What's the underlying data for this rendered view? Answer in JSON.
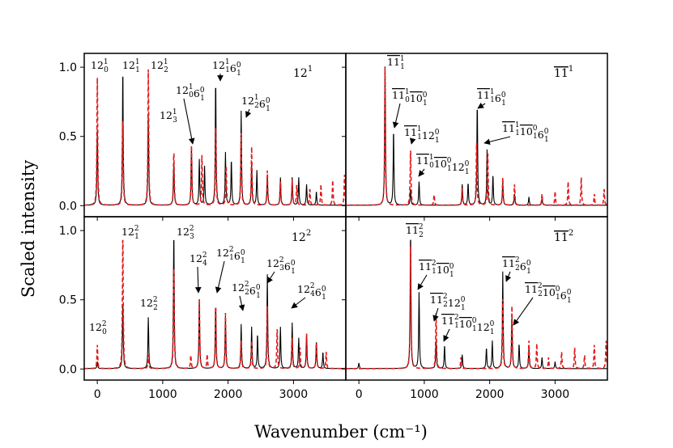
{
  "figure": {
    "ylabel": "Scaled intensity",
    "xlabel": "Wavenumber (cm⁻¹)"
  },
  "chart_data": [
    {
      "type": "line",
      "panel": "top-left",
      "tag": "12¹",
      "xlim": [
        -200,
        3800
      ],
      "ylim": [
        -0.08,
        1.1
      ],
      "yticks": [
        "0.0",
        "0.5",
        "1.0"
      ],
      "grid": false,
      "series": [
        {
          "color": "#000000",
          "style": "solid",
          "peaks": [
            [
              0,
              0.55
            ],
            [
              390,
              1.0
            ],
            [
              780,
              0.65
            ],
            [
              1170,
              0.32
            ],
            [
              1440,
              0.42
            ],
            [
              1560,
              0.33
            ],
            [
              1640,
              0.28
            ],
            [
              1810,
              0.91
            ],
            [
              1960,
              0.38
            ],
            [
              2050,
              0.33
            ],
            [
              2200,
              0.68
            ],
            [
              2360,
              0.3
            ],
            [
              2440,
              0.25
            ],
            [
              2600,
              0.22
            ],
            [
              2800,
              0.2
            ],
            [
              2980,
              0.2
            ],
            [
              3080,
              0.2
            ],
            [
              3200,
              0.15
            ],
            [
              3350,
              0.1
            ]
          ]
        },
        {
          "color": "#e31a1c",
          "style": "dashed",
          "peaks": [
            [
              0,
              0.92
            ],
            [
              390,
              0.65
            ],
            [
              780,
              0.98
            ],
            [
              1170,
              0.4
            ],
            [
              1440,
              0.43
            ],
            [
              1600,
              0.36
            ],
            [
              1810,
              0.6
            ],
            [
              1970,
              0.3
            ],
            [
              2200,
              0.52
            ],
            [
              2360,
              0.42
            ],
            [
              2600,
              0.25
            ],
            [
              2800,
              0.17
            ],
            [
              2980,
              0.18
            ],
            [
              3050,
              0.15
            ],
            [
              3250,
              0.12
            ],
            [
              3420,
              0.15
            ],
            [
              3600,
              0.18
            ],
            [
              3780,
              0.22
            ]
          ]
        }
      ],
      "annotations": [
        {
          "base": "12",
          "sup": "1",
          "sub": "0"
        },
        {
          "base": "12",
          "sup": "1",
          "sub": "1"
        },
        {
          "base": "12",
          "sup": "1",
          "sub": "2"
        },
        {
          "base": "12",
          "sup": "1",
          "sub": "3"
        },
        {
          "base": "12",
          "sup": "1",
          "sub": "0",
          "base2": "6",
          "sup2": "0",
          "sub2": "1"
        },
        {
          "base": "12",
          "sup": "1",
          "sub": "1",
          "base2": "6",
          "sup2": "0",
          "sub2": "1"
        },
        {
          "base": "12",
          "sup": "1",
          "sub": "2",
          "base2": "6",
          "sup2": "0",
          "sub2": "1"
        }
      ]
    },
    {
      "type": "line",
      "panel": "top-right",
      "tag": "11¹",
      "xlim": [
        -200,
        3800
      ],
      "ylim": [
        -0.08,
        1.1
      ],
      "grid": false,
      "series": [
        {
          "color": "#000000",
          "style": "solid",
          "peaks": [
            [
              400,
              1.0
            ],
            [
              530,
              0.55
            ],
            [
              790,
              0.12
            ],
            [
              920,
              0.17
            ],
            [
              1580,
              0.15
            ],
            [
              1670,
              0.16
            ],
            [
              1810,
              0.74
            ],
            [
              1960,
              0.4
            ],
            [
              2050,
              0.22
            ],
            [
              2200,
              0.17
            ],
            [
              2380,
              0.08
            ],
            [
              2600,
              0.06
            ],
            [
              2800,
              0.05
            ]
          ]
        },
        {
          "color": "#e31a1c",
          "style": "dashed",
          "peaks": [
            [
              400,
              1.0
            ],
            [
              790,
              0.42
            ],
            [
              1150,
              0.08
            ],
            [
              1580,
              0.12
            ],
            [
              1800,
              0.45
            ],
            [
              1970,
              0.4
            ],
            [
              2200,
              0.2
            ],
            [
              2380,
              0.15
            ],
            [
              2800,
              0.08
            ],
            [
              3000,
              0.1
            ],
            [
              3200,
              0.17
            ],
            [
              3400,
              0.2
            ],
            [
              3600,
              0.08
            ],
            [
              3750,
              0.12
            ]
          ]
        }
      ],
      "annotations": [
        {
          "base": "11",
          "sup": "1",
          "sub": "1",
          "overline": true
        },
        {
          "base": "11",
          "sup": "1",
          "sub": "0",
          "base2": "10",
          "sup2": "0",
          "sub2": "1",
          "overline": true
        },
        {
          "base": "11",
          "sup": "1",
          "sub": "1",
          "base2": "12",
          "sup2": "0",
          "sub2": "1",
          "overline": true
        },
        {
          "base": "11",
          "sup": "1",
          "sub": "0",
          "base2": "10",
          "sup2": "0",
          "sub2": "1",
          "base3": "12",
          "sup3": "0",
          "sub3": "1",
          "overline": true
        },
        {
          "base": "11",
          "sup": "1",
          "sub": "1",
          "base2": "6",
          "sup2": "0",
          "sub2": "1",
          "overline": true
        },
        {
          "base": "11",
          "sup": "1",
          "sub": "1",
          "base2": "10",
          "sup2": "0",
          "sub2": "1",
          "base3": "6",
          "sup3": "0",
          "sub3": "1",
          "overline": true
        }
      ]
    },
    {
      "type": "line",
      "panel": "bottom-left",
      "tag": "12²",
      "xlim": [
        -200,
        3800
      ],
      "ylim": [
        -0.08,
        1.1
      ],
      "xticks": [
        "0",
        "1000",
        "2000",
        "3000"
      ],
      "yticks": [
        "0.0",
        "0.5",
        "1.0"
      ],
      "grid": false,
      "series": [
        {
          "color": "#000000",
          "style": "solid",
          "peaks": [
            [
              0,
              0.05
            ],
            [
              390,
              0.5
            ],
            [
              780,
              0.37
            ],
            [
              1170,
              1.0
            ],
            [
              1560,
              0.5
            ],
            [
              1810,
              0.45
            ],
            [
              1960,
              0.38
            ],
            [
              2200,
              0.32
            ],
            [
              2360,
              0.3
            ],
            [
              2450,
              0.25
            ],
            [
              2600,
              0.68
            ],
            [
              2800,
              0.3
            ],
            [
              2980,
              0.33
            ],
            [
              3080,
              0.22
            ],
            [
              3200,
              0.25
            ],
            [
              3350,
              0.2
            ],
            [
              3450,
              0.12
            ]
          ]
        },
        {
          "color": "#e31a1c",
          "style": "dashed",
          "peaks": [
            [
              0,
              0.17
            ],
            [
              390,
              1.0
            ],
            [
              780,
              0.1
            ],
            [
              1170,
              0.78
            ],
            [
              1430,
              0.1
            ],
            [
              1560,
              0.5
            ],
            [
              1680,
              0.1
            ],
            [
              1810,
              0.48
            ],
            [
              1960,
              0.4
            ],
            [
              2200,
              0.2
            ],
            [
              2360,
              0.2
            ],
            [
              2600,
              0.45
            ],
            [
              2750,
              0.3
            ],
            [
              2980,
              0.22
            ],
            [
              3100,
              0.15
            ],
            [
              3200,
              0.25
            ],
            [
              3350,
              0.2
            ],
            [
              3500,
              0.12
            ]
          ]
        }
      ],
      "annotations": [
        {
          "base": "12",
          "sup": "2",
          "sub": "0"
        },
        {
          "base": "12",
          "sup": "2",
          "sub": "1"
        },
        {
          "base": "12",
          "sup": "2",
          "sub": "2"
        },
        {
          "base": "12",
          "sup": "2",
          "sub": "3"
        },
        {
          "base": "12",
          "sup": "2",
          "sub": "4"
        },
        {
          "base": "12",
          "sup": "2",
          "sub": "1",
          "base2": "6",
          "sup2": "0",
          "sub2": "1"
        },
        {
          "base": "12",
          "sup": "2",
          "sub": "2",
          "base2": "6",
          "sup2": "0",
          "sub2": "1"
        },
        {
          "base": "12",
          "sup": "2",
          "sub": "3",
          "base2": "6",
          "sup2": "0",
          "sub2": "1"
        },
        {
          "base": "12",
          "sup": "2",
          "sub": "4",
          "base2": "6",
          "sup2": "0",
          "sub2": "1"
        }
      ]
    },
    {
      "type": "line",
      "panel": "bottom-right",
      "tag": "11²",
      "xlim": [
        -200,
        3800
      ],
      "ylim": [
        -0.08,
        1.1
      ],
      "xticks": [
        "0",
        "1000",
        "2000",
        "3000"
      ],
      "grid": false,
      "series": [
        {
          "color": "#000000",
          "style": "solid",
          "peaks": [
            [
              0,
              0.04
            ],
            [
              790,
              1.0
            ],
            [
              920,
              0.55
            ],
            [
              1180,
              0.2
            ],
            [
              1310,
              0.17
            ],
            [
              1580,
              0.1
            ],
            [
              1950,
              0.15
            ],
            [
              2040,
              0.2
            ],
            [
              2200,
              0.7
            ],
            [
              2340,
              0.38
            ],
            [
              2450,
              0.18
            ],
            [
              2600,
              0.15
            ],
            [
              2800,
              0.08
            ],
            [
              3000,
              0.05
            ]
          ]
        },
        {
          "color": "#e31a1c",
          "style": "dashed",
          "peaks": [
            [
              790,
              0.95
            ],
            [
              1180,
              0.4
            ],
            [
              1560,
              0.08
            ],
            [
              2200,
              0.5
            ],
            [
              2340,
              0.45
            ],
            [
              2600,
              0.2
            ],
            [
              2720,
              0.18
            ],
            [
              2900,
              0.08
            ],
            [
              3100,
              0.12
            ],
            [
              3300,
              0.15
            ],
            [
              3450,
              0.1
            ],
            [
              3600,
              0.17
            ],
            [
              3780,
              0.2
            ]
          ]
        }
      ],
      "annotations": [
        {
          "base": "11",
          "sup": "2",
          "sub": "2",
          "overline": true
        },
        {
          "base": "11",
          "sup": "2",
          "sub": "1",
          "base2": "10",
          "sup2": "0",
          "sub2": "1",
          "overline": true
        },
        {
          "base": "11",
          "sup": "2",
          "sub": "2",
          "base2": "12",
          "sup2": "0",
          "sub2": "1",
          "overline": true
        },
        {
          "base": "11",
          "sup": "2",
          "sub": "1",
          "base2": "10",
          "sup2": "0",
          "sub2": "1",
          "base3": "12",
          "sup3": "0",
          "sub3": "1",
          "overline": true
        },
        {
          "base": "11",
          "sup": "2",
          "sub": "2",
          "base2": "6",
          "sup2": "0",
          "sub2": "1",
          "overline": true
        },
        {
          "base": "11",
          "sup": "2",
          "sub": "2",
          "base2": "10",
          "sup2": "0",
          "sub2": "1",
          "base3": "6",
          "sup3": "0",
          "sub3": "1",
          "overline": true
        }
      ]
    }
  ]
}
